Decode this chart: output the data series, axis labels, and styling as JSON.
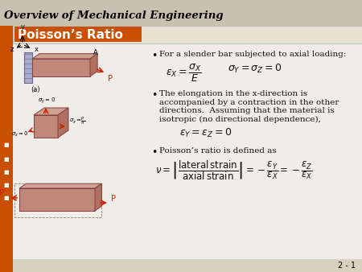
{
  "title": "Overview of Mechanical Engineering",
  "subtitle": "Poisson’s Ratio",
  "bg_color": "#f0ede8",
  "header_bg": "#c8c0b0",
  "subtitle_bg": "#e8e0d0",
  "orange_bar_color": "#c85000",
  "left_nav_color": "#c85000",
  "slide_bg": "#b8b0a0",
  "bullet1": "For a slender bar subjected to axial loading:",
  "bullet2_line1": "The elongation in the x-direction is",
  "bullet2_line2": "accompanied by a contraction in the other",
  "bullet2_line3": "directions.  Assuming that the material is",
  "bullet2_line4": "isotropic (no directional dependence),",
  "bullet3": "Poisson’s ratio is defined as",
  "slide_number": "2 - 1",
  "title_fontsize": 9.5,
  "subtitle_fontsize": 11,
  "body_fontsize": 7.5,
  "eq_fontsize": 9,
  "bar_color": "#c08878",
  "bar_top_color": "#d0a090",
  "bar_right_color": "#b07060",
  "bar_edge_color": "#804040",
  "wall_color": "#aaaacc",
  "wall_edge_color": "#666688",
  "arrow_color": "#cc2200",
  "text_color": "#111111"
}
